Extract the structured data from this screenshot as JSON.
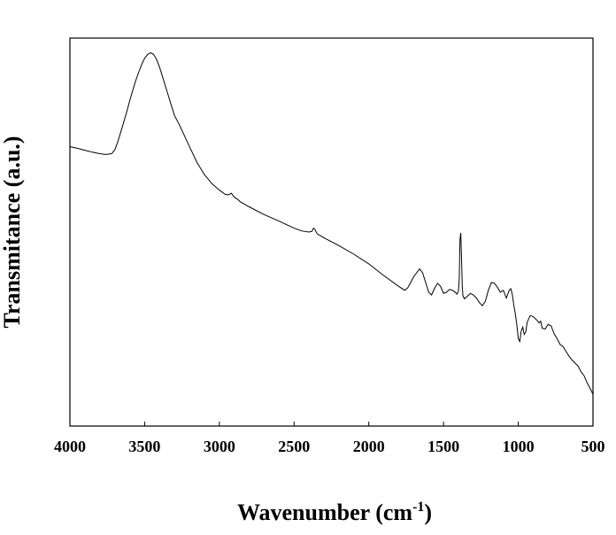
{
  "chart_data": {
    "type": "line",
    "title": "",
    "xlabel": "Wavenumber (cm",
    "xlabel_sup": "-1",
    "xlabel_close": ")",
    "ylabel": "Transmitance (a.u.)",
    "xlim": [
      4000,
      500
    ],
    "ylim": [
      0,
      1
    ],
    "x_reversed": true,
    "y_ticks_shown": false,
    "grid": false,
    "legend": "none",
    "line_color": "#000000",
    "x_ticks": [
      4000,
      3500,
      3000,
      2500,
      2000,
      1500,
      1000,
      500
    ],
    "x_tick_labels": [
      "4000",
      "3500",
      "3000",
      "2500",
      "2000",
      "1500",
      "1000",
      "500"
    ],
    "series": [
      {
        "x": [
          4000,
          3950,
          3900,
          3850,
          3800,
          3760,
          3720,
          3700,
          3680,
          3650,
          3620,
          3600,
          3580,
          3560,
          3540,
          3520,
          3500,
          3480,
          3460,
          3440,
          3420,
          3400,
          3380,
          3350,
          3320,
          3300,
          3270,
          3250,
          3200,
          3150,
          3100,
          3050,
          3000,
          2960,
          2940,
          2920,
          2900,
          2880,
          2860,
          2800,
          2700,
          2600,
          2500,
          2450,
          2400,
          2380,
          2370,
          2360,
          2350,
          2340,
          2320,
          2300,
          2200,
          2100,
          2000,
          1900,
          1800,
          1760,
          1740,
          1720,
          1700,
          1680,
          1660,
          1640,
          1620,
          1600,
          1580,
          1560,
          1540,
          1520,
          1500,
          1480,
          1460,
          1440,
          1420,
          1410,
          1400,
          1395,
          1390,
          1385,
          1380,
          1375,
          1370,
          1360,
          1340,
          1320,
          1300,
          1280,
          1260,
          1240,
          1220,
          1200,
          1180,
          1160,
          1140,
          1120,
          1100,
          1090,
          1080,
          1060,
          1050,
          1040,
          1030,
          1020,
          1010,
          1000,
          990,
          980,
          970,
          960,
          950,
          940,
          920,
          900,
          880,
          860,
          850,
          840,
          820,
          800,
          780,
          760,
          740,
          720,
          700,
          680,
          660,
          640,
          620,
          600,
          580,
          560,
          540,
          520,
          500
        ],
        "y": [
          0.72,
          0.716,
          0.711,
          0.706,
          0.702,
          0.7,
          0.702,
          0.712,
          0.732,
          0.77,
          0.81,
          0.838,
          0.865,
          0.89,
          0.912,
          0.932,
          0.948,
          0.958,
          0.962,
          0.958,
          0.945,
          0.925,
          0.9,
          0.862,
          0.825,
          0.8,
          0.778,
          0.762,
          0.72,
          0.68,
          0.648,
          0.625,
          0.608,
          0.597,
          0.596,
          0.6,
          0.59,
          0.585,
          0.578,
          0.565,
          0.545,
          0.528,
          0.51,
          0.503,
          0.5,
          0.502,
          0.51,
          0.507,
          0.498,
          0.494,
          0.49,
          0.485,
          0.465,
          0.443,
          0.418,
          0.388,
          0.36,
          0.35,
          0.356,
          0.37,
          0.385,
          0.395,
          0.405,
          0.395,
          0.37,
          0.345,
          0.338,
          0.355,
          0.368,
          0.36,
          0.342,
          0.345,
          0.352,
          0.35,
          0.344,
          0.34,
          0.348,
          0.38,
          0.48,
          0.498,
          0.44,
          0.36,
          0.335,
          0.328,
          0.335,
          0.342,
          0.338,
          0.33,
          0.318,
          0.31,
          0.322,
          0.35,
          0.37,
          0.368,
          0.358,
          0.345,
          0.35,
          0.34,
          0.33,
          0.35,
          0.354,
          0.34,
          0.312,
          0.29,
          0.262,
          0.225,
          0.218,
          0.245,
          0.255,
          0.236,
          0.242,
          0.268,
          0.285,
          0.282,
          0.275,
          0.266,
          0.27,
          0.252,
          0.25,
          0.262,
          0.258,
          0.238,
          0.225,
          0.21,
          0.205,
          0.192,
          0.18,
          0.17,
          0.162,
          0.155,
          0.14,
          0.13,
          0.112,
          0.098,
          0.082
        ]
      }
    ]
  }
}
